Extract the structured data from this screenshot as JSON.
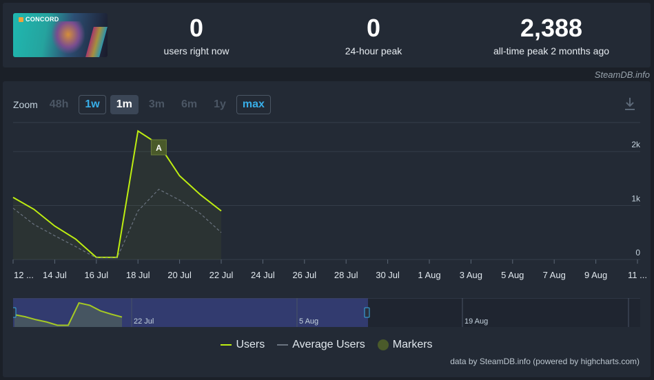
{
  "header": {
    "game_logo_text": "CONCORD",
    "stats": [
      {
        "value": "0",
        "label": "users right now"
      },
      {
        "value": "0",
        "label": "24-hour peak"
      },
      {
        "value": "2,388",
        "label": "all-time peak 2 months ago"
      }
    ],
    "attribution": "SteamDB.info"
  },
  "zoom": {
    "label": "Zoom",
    "options": [
      "48h",
      "1w",
      "1m",
      "3m",
      "6m",
      "1y",
      "max"
    ],
    "selected": "1m"
  },
  "chart_data": {
    "type": "line",
    "x": [
      "12 Jul",
      "13 Jul",
      "14 Jul",
      "15 Jul",
      "16 Jul",
      "17 Jul",
      "18 Jul",
      "19 Jul",
      "20 Jul",
      "21 Jul",
      "22 Jul"
    ],
    "series": [
      {
        "name": "Users",
        "color": "#beee11",
        "values": [
          1150,
          930,
          620,
          380,
          40,
          40,
          2380,
          2130,
          1550,
          1200,
          900
        ]
      },
      {
        "name": "Average Users",
        "color": "#6b7481",
        "values": [
          950,
          650,
          440,
          240,
          30,
          30,
          900,
          1300,
          1100,
          850,
          500
        ]
      }
    ],
    "markers": [
      {
        "x": "19 Jul",
        "label": "A"
      }
    ],
    "x_tick_labels": [
      "12 ...",
      "14 Jul",
      "16 Jul",
      "18 Jul",
      "20 Jul",
      "22 Jul",
      "24 Jul",
      "26 Jul",
      "28 Jul",
      "30 Jul",
      "1 Aug",
      "3 Aug",
      "5 Aug",
      "7 Aug",
      "9 Aug",
      "11 ..."
    ],
    "y_ticks": [
      {
        "value": 0,
        "label": "0"
      },
      {
        "value": 1000,
        "label": "1k"
      },
      {
        "value": 2000,
        "label": "2k"
      }
    ],
    "ylim": [
      0,
      2600
    ],
    "navigator_labels": [
      "22 Jul",
      "5 Aug",
      "19 Aug"
    ],
    "legend": [
      "Users",
      "Average Users",
      "Markers"
    ],
    "markers_color": "#4a5a2a"
  },
  "credits": "data by SteamDB.info (powered by highcharts.com)"
}
